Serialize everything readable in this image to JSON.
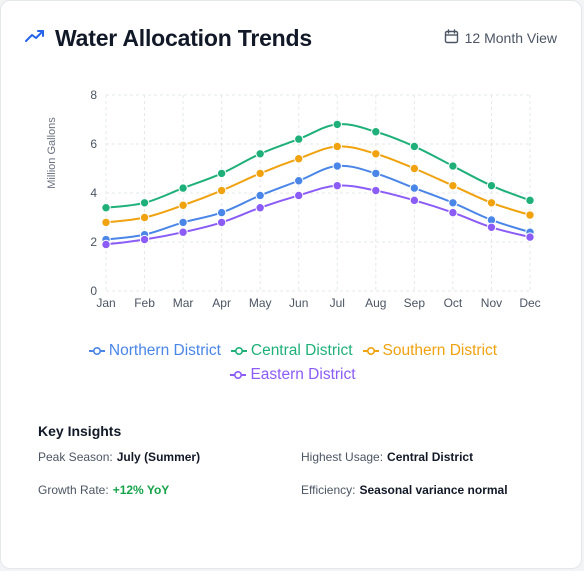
{
  "header": {
    "title": "Water Allocation Trends",
    "view_label": "12 Month View"
  },
  "colors": {
    "northern": "#4a86e8",
    "central": "#1fb07a",
    "southern": "#f0a20f",
    "eastern": "#8b5cf6"
  },
  "chart_data": {
    "type": "line",
    "title": "",
    "xlabel": "",
    "ylabel": "Million Gallons",
    "ylim": [
      0,
      8
    ],
    "yticks": [
      "0",
      "2",
      "4",
      "6",
      "8"
    ],
    "categories": [
      "Jan",
      "Feb",
      "Mar",
      "Apr",
      "May",
      "Jun",
      "Jul",
      "Aug",
      "Sep",
      "Oct",
      "Nov",
      "Dec"
    ],
    "grid": true,
    "legend_position": "bottom",
    "series": [
      {
        "name": "Northern District",
        "color": "#4a86e8",
        "values": [
          2.1,
          2.3,
          2.8,
          3.2,
          3.9,
          4.5,
          5.1,
          4.8,
          4.2,
          3.6,
          2.9,
          2.4
        ]
      },
      {
        "name": "Central District",
        "color": "#1fb07a",
        "values": [
          3.4,
          3.6,
          4.2,
          4.8,
          5.6,
          6.2,
          6.8,
          6.5,
          5.9,
          5.1,
          4.3,
          3.7
        ]
      },
      {
        "name": "Southern District",
        "color": "#f0a20f",
        "values": [
          2.8,
          3.0,
          3.5,
          4.1,
          4.8,
          5.4,
          5.9,
          5.6,
          5.0,
          4.3,
          3.6,
          3.1
        ]
      },
      {
        "name": "Eastern District",
        "color": "#8b5cf6",
        "values": [
          1.9,
          2.1,
          2.4,
          2.8,
          3.4,
          3.9,
          4.3,
          4.1,
          3.7,
          3.2,
          2.6,
          2.2
        ]
      }
    ]
  },
  "insights": {
    "title": "Key Insights",
    "peak_label": "Peak Season:",
    "peak_value": "July (Summer)",
    "highest_label": "Highest Usage:",
    "highest_value": "Central District",
    "growth_label": "Growth Rate:",
    "growth_value": "+12% YoY",
    "efficiency_label": "Efficiency:",
    "efficiency_value": "Seasonal variance normal"
  }
}
